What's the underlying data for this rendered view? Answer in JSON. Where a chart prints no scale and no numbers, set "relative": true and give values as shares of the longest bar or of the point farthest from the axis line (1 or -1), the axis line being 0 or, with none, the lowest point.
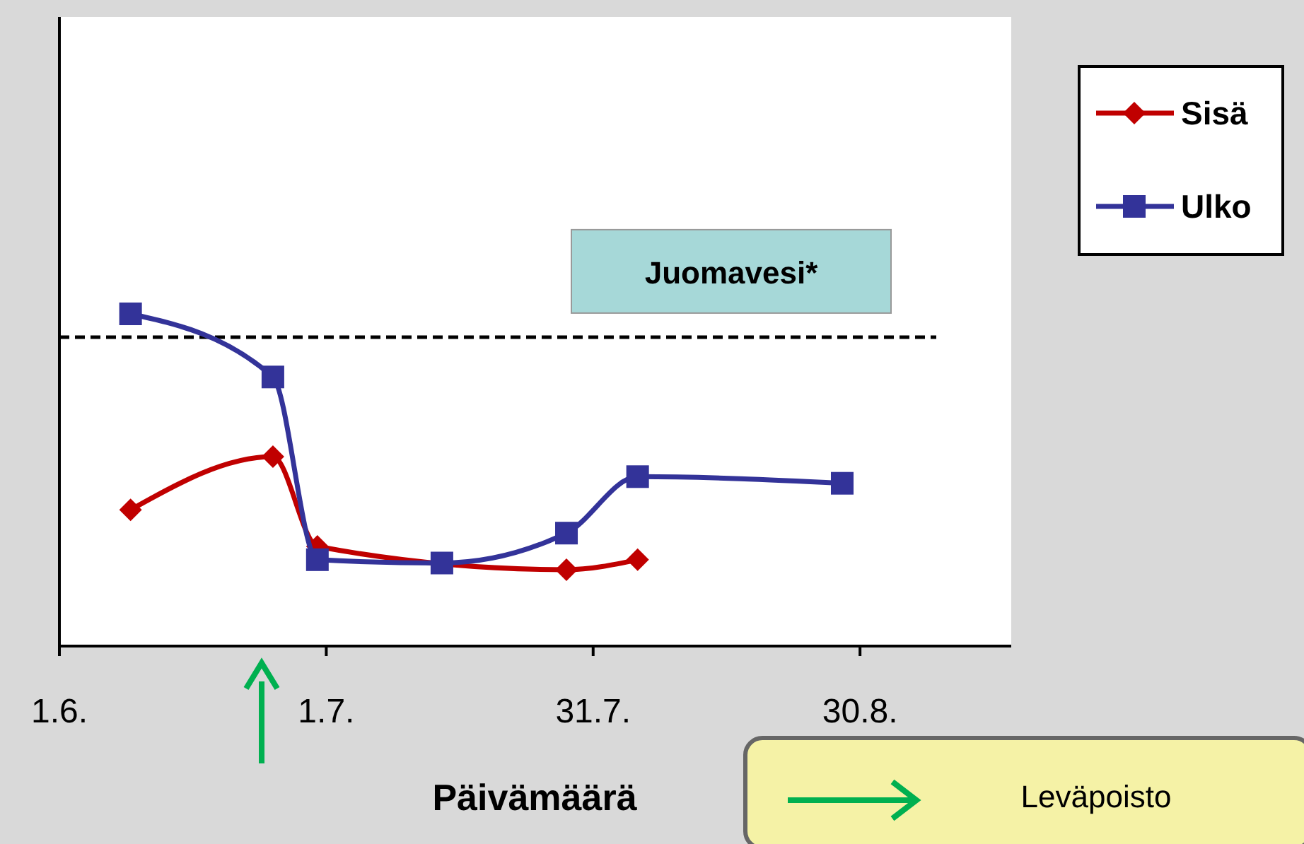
{
  "chart_data": {
    "type": "line",
    "relative": true,
    "xlabel": "Päivämäärä",
    "xlim": [
      "--06-01",
      "--09-16"
    ],
    "xticks": [
      {
        "value": "--06-01",
        "label": "1.6."
      },
      {
        "value": "--07-01",
        "label": "1.7."
      },
      {
        "value": "--07-31",
        "label": "31.7."
      },
      {
        "value": "--08-30",
        "label": "30.8."
      }
    ],
    "series": [
      {
        "name": "Sisä",
        "color": "#c00000",
        "marker": "diamond",
        "x": [
          "--06-09",
          "--06-25",
          "--06-30",
          "--07-14",
          "--07-28",
          "--08-05"
        ],
        "values": [
          0.41,
          0.57,
          0.3,
          null,
          0.23,
          0.26
        ]
      },
      {
        "name": "Ulko",
        "color": "#333399",
        "marker": "square",
        "x": [
          "--06-09",
          "--06-25",
          "--06-30",
          "--07-14",
          "--07-28",
          "--08-05",
          "--08-28"
        ],
        "values": [
          1,
          0.81,
          0.26,
          0.25,
          0.34,
          0.51,
          0.49
        ]
      }
    ],
    "ref_lines": [
      {
        "axis": "y",
        "value": 0.93,
        "label": "Juomavesi*",
        "line_style": "dashed",
        "color": "#000000"
      }
    ],
    "annotations": [
      "Leväpoisto"
    ],
    "legend": "right",
    "grid": false
  }
}
